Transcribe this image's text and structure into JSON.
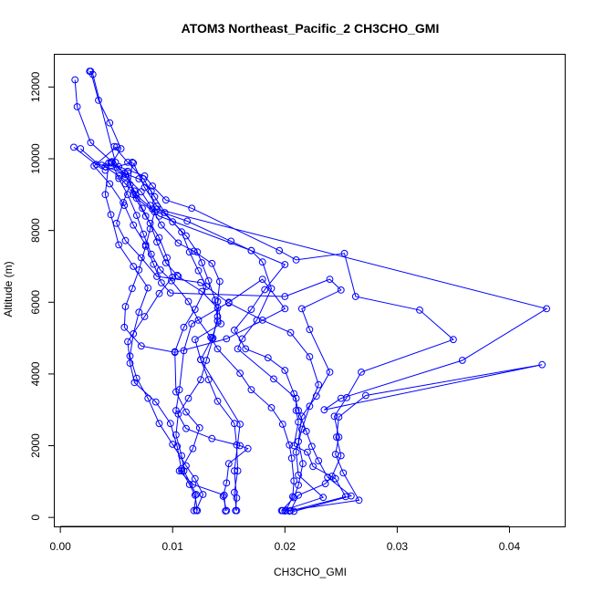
{
  "chart_data": {
    "type": "line",
    "title": "ATOM3 Northeast_Pacific_2 CH3CHO_GMI",
    "xlabel": "CH3CHO_GMI",
    "ylabel": "Altitude (m)",
    "xlim": [
      -0.0005,
      0.045
    ],
    "ylim": [
      -250,
      12900
    ],
    "xticks": [
      0.0,
      0.01,
      0.02,
      0.03,
      0.04
    ],
    "xtick_labels": [
      "0.00",
      "0.01",
      "0.02",
      "0.03",
      "0.04"
    ],
    "yticks": [
      0,
      2000,
      4000,
      6000,
      8000,
      10000,
      12000
    ],
    "ytick_labels": [
      "0",
      "2000",
      "4000",
      "6000",
      "8000",
      "10000",
      "12000"
    ],
    "grid": false,
    "color": "#0000ff",
    "marker": "open-circle",
    "series": [
      {
        "points": [
          [
            0.0027,
            12440
          ],
          [
            0.0034,
            11630
          ],
          [
            0.0044,
            11000
          ],
          [
            0.0054,
            10280
          ],
          [
            0.0046,
            9880
          ],
          [
            0.0052,
            9450
          ],
          [
            0.006,
            9000
          ],
          [
            0.0068,
            8420
          ],
          [
            0.0074,
            7900
          ],
          [
            0.0081,
            7340
          ],
          [
            0.0089,
            6900
          ],
          [
            0.0099,
            6600
          ],
          [
            0.0114,
            6020
          ],
          [
            0.0123,
            5500
          ],
          [
            0.0134,
            5020
          ],
          [
            0.014,
            4700
          ],
          [
            0.016,
            4020
          ],
          [
            0.017,
            3560
          ],
          [
            0.0188,
            3060
          ],
          [
            0.0198,
            2600
          ],
          [
            0.0204,
            2020
          ],
          [
            0.0206,
            1650
          ],
          [
            0.0208,
            1020
          ],
          [
            0.0207,
            580
          ],
          [
            0.0201,
            200
          ]
        ]
      },
      {
        "points": [
          [
            0.0013,
            12200
          ],
          [
            0.0015,
            11450
          ],
          [
            0.0027,
            10450
          ],
          [
            0.0046,
            9920
          ],
          [
            0.0058,
            9560
          ],
          [
            0.0067,
            9000
          ],
          [
            0.0082,
            8600
          ],
          [
            0.0113,
            8260
          ],
          [
            0.0152,
            7700
          ],
          [
            0.017,
            7440
          ],
          [
            0.02,
            7050
          ],
          [
            0.0182,
            6350
          ],
          [
            0.017,
            5800
          ],
          [
            0.0155,
            5220
          ],
          [
            0.0165,
            4700
          ],
          [
            0.0185,
            4450
          ],
          [
            0.02,
            4100
          ],
          [
            0.0208,
            3450
          ],
          [
            0.0212,
            2980
          ],
          [
            0.0219,
            2400
          ],
          [
            0.0224,
            1980
          ],
          [
            0.023,
            1580
          ],
          [
            0.0238,
            1120
          ],
          [
            0.0259,
            600
          ],
          [
            0.0208,
            170
          ]
        ]
      },
      {
        "points": [
          [
            0.0012,
            10320
          ],
          [
            0.0032,
            9840
          ],
          [
            0.0052,
            9780
          ],
          [
            0.0075,
            9520
          ],
          [
            0.0082,
            9240
          ],
          [
            0.0094,
            8850
          ],
          [
            0.0117,
            8620
          ],
          [
            0.0195,
            7440
          ],
          [
            0.021,
            7180
          ],
          [
            0.0253,
            7360
          ],
          [
            0.0263,
            6160
          ],
          [
            0.032,
            5780
          ],
          [
            0.035,
            4960
          ],
          [
            0.0268,
            4050
          ],
          [
            0.0255,
            3340
          ],
          [
            0.0244,
            2820
          ],
          [
            0.0248,
            2240
          ],
          [
            0.0245,
            1760
          ],
          [
            0.0252,
            1240
          ],
          [
            0.0266,
            480
          ],
          [
            0.02,
            180
          ]
        ]
      },
      {
        "points": [
          [
            0.0018,
            10280
          ],
          [
            0.004,
            9680
          ],
          [
            0.0064,
            9900
          ],
          [
            0.0062,
            9280
          ],
          [
            0.0056,
            8780
          ],
          [
            0.005,
            8200
          ],
          [
            0.0058,
            7720
          ],
          [
            0.0072,
            7240
          ],
          [
            0.0086,
            6720
          ],
          [
            0.0125,
            6550
          ],
          [
            0.015,
            5980
          ],
          [
            0.018,
            5500
          ],
          [
            0.0205,
            5150
          ],
          [
            0.0222,
            4480
          ],
          [
            0.023,
            3700
          ],
          [
            0.0222,
            3100
          ],
          [
            0.0215,
            2460
          ],
          [
            0.021,
            1820
          ],
          [
            0.0212,
            1180
          ],
          [
            0.0234,
            560
          ],
          [
            0.0198,
            190
          ]
        ]
      },
      {
        "points": [
          [
            0.005,
            10330
          ],
          [
            0.003,
            9800
          ],
          [
            0.0044,
            9300
          ],
          [
            0.0057,
            8700
          ],
          [
            0.0065,
            8150
          ],
          [
            0.0076,
            7600
          ],
          [
            0.0083,
            7060
          ],
          [
            0.009,
            6540
          ],
          [
            0.0098,
            6260
          ],
          [
            0.02,
            6160
          ],
          [
            0.024,
            6640
          ],
          [
            0.025,
            6340
          ],
          [
            0.0215,
            5820
          ],
          [
            0.0222,
            5240
          ],
          [
            0.024,
            4050
          ],
          [
            0.0228,
            3380
          ],
          [
            0.0215,
            2820
          ],
          [
            0.0212,
            2120
          ],
          [
            0.0216,
            1500
          ],
          [
            0.0212,
            900
          ],
          [
            0.0208,
            550
          ],
          [
            0.0197,
            190
          ]
        ]
      },
      {
        "points": [
          [
            0.0043,
            9880
          ],
          [
            0.004,
            9000
          ],
          [
            0.0045,
            8440
          ],
          [
            0.0052,
            7600
          ],
          [
            0.0065,
            7000
          ],
          [
            0.0078,
            6400
          ],
          [
            0.007,
            5720
          ],
          [
            0.0065,
            5120
          ],
          [
            0.0062,
            4500
          ],
          [
            0.0068,
            3880
          ],
          [
            0.0078,
            3320
          ],
          [
            0.0088,
            2620
          ],
          [
            0.01,
            2040
          ],
          [
            0.0112,
            1440
          ],
          [
            0.012,
            1080
          ],
          [
            0.0127,
            640
          ],
          [
            0.0121,
            200
          ]
        ]
      },
      {
        "points": [
          [
            0.006,
            9650
          ],
          [
            0.0065,
            9000
          ],
          [
            0.0076,
            8400
          ],
          [
            0.0088,
            7800
          ],
          [
            0.0095,
            7240
          ],
          [
            0.01,
            6700
          ],
          [
            0.0088,
            6240
          ],
          [
            0.0075,
            5600
          ],
          [
            0.006,
            4900
          ],
          [
            0.0062,
            4300
          ],
          [
            0.0066,
            3760
          ],
          [
            0.0085,
            3220
          ],
          [
            0.0098,
            2620
          ],
          [
            0.0104,
            1980
          ],
          [
            0.0108,
            1300
          ],
          [
            0.0115,
            920
          ],
          [
            0.012,
            620
          ],
          [
            0.0122,
            190
          ]
        ]
      },
      {
        "points": [
          [
            0.0026,
            12440
          ],
          [
            0.0029,
            12350
          ],
          [
            0.0049,
            9900
          ],
          [
            0.0058,
            9500
          ],
          [
            0.0072,
            9080
          ],
          [
            0.008,
            8700
          ],
          [
            0.009,
            8150
          ],
          [
            0.0105,
            7650
          ],
          [
            0.0119,
            7420
          ],
          [
            0.0135,
            7080
          ],
          [
            0.0142,
            6580
          ],
          [
            0.014,
            6020
          ],
          [
            0.0143,
            5400
          ],
          [
            0.012,
            4960
          ],
          [
            0.0125,
            4400
          ],
          [
            0.0132,
            3840
          ],
          [
            0.014,
            3240
          ],
          [
            0.0155,
            2620
          ],
          [
            0.0157,
            2020
          ],
          [
            0.0158,
            1300
          ],
          [
            0.0155,
            700
          ],
          [
            0.0157,
            190
          ]
        ]
      },
      {
        "points": [
          [
            0.0037,
            9820
          ],
          [
            0.007,
            9440
          ],
          [
            0.0081,
            9100
          ],
          [
            0.0084,
            8520
          ],
          [
            0.008,
            8050
          ],
          [
            0.0076,
            7560
          ],
          [
            0.007,
            6900
          ],
          [
            0.0064,
            6380
          ],
          [
            0.0058,
            5880
          ],
          [
            0.0057,
            5300
          ],
          [
            0.0072,
            4780
          ],
          [
            0.0102,
            4600
          ],
          [
            0.0148,
            4980
          ],
          [
            0.02,
            5820
          ],
          [
            0.018,
            6640
          ],
          [
            0.015,
            6000
          ],
          [
            0.0117,
            5400
          ],
          [
            0.011,
            4650
          ],
          [
            0.0106,
            3560
          ],
          [
            0.0103,
            2980
          ],
          [
            0.0112,
            2480
          ],
          [
            0.0135,
            2200
          ],
          [
            0.016,
            2000
          ],
          [
            0.0167,
            1920
          ],
          [
            0.015,
            1500
          ],
          [
            0.0148,
            960
          ],
          [
            0.0145,
            590
          ],
          [
            0.0148,
            190
          ]
        ]
      },
      {
        "points": [
          [
            0.0045,
            9900
          ],
          [
            0.0057,
            9600
          ],
          [
            0.0066,
            9100
          ],
          [
            0.0073,
            8620
          ],
          [
            0.008,
            8200
          ],
          [
            0.0086,
            7680
          ],
          [
            0.0094,
            7100
          ],
          [
            0.0104,
            6750
          ],
          [
            0.0105,
            6720
          ],
          [
            0.0126,
            6300
          ],
          [
            0.014,
            5840
          ],
          [
            0.014,
            5600
          ],
          [
            0.0136,
            5000
          ],
          [
            0.013,
            4380
          ],
          [
            0.0125,
            3840
          ],
          [
            0.0114,
            3320
          ],
          [
            0.0105,
            2880
          ],
          [
            0.0103,
            2300
          ],
          [
            0.0108,
            1720
          ],
          [
            0.011,
            1300
          ],
          [
            0.0121,
            640
          ],
          [
            0.0119,
            190
          ]
        ]
      },
      {
        "points": [
          [
            0.0065,
            9880
          ],
          [
            0.0075,
            9200
          ],
          [
            0.0086,
            8680
          ],
          [
            0.01,
            8240
          ],
          [
            0.0112,
            7850
          ],
          [
            0.0122,
            7400
          ],
          [
            0.0126,
            7100
          ],
          [
            0.0132,
            6600
          ],
          [
            0.0138,
            6060
          ],
          [
            0.014,
            5480
          ],
          [
            0.0135,
            4990
          ],
          [
            0.0125,
            4400
          ],
          [
            0.016,
            2600
          ],
          [
            0.0155,
            1300
          ],
          [
            0.0157,
            540
          ],
          [
            0.0156,
            190
          ]
        ]
      },
      {
        "points": [
          [
            0.0086,
            8600
          ],
          [
            0.0433,
            5820
          ],
          [
            0.0358,
            4380
          ],
          [
            0.025,
            3320
          ],
          [
            0.0235,
            3000
          ],
          [
            0.0429,
            4260
          ],
          [
            0.0272,
            3400
          ],
          [
            0.0248,
            2800
          ],
          [
            0.0246,
            2240
          ],
          [
            0.025,
            1720
          ],
          [
            0.0242,
            1150
          ],
          [
            0.0236,
            940
          ],
          [
            0.0212,
            620
          ],
          [
            0.0205,
            190
          ]
        ]
      },
      {
        "points": [
          [
            0.004,
            9780
          ],
          [
            0.0052,
            9520
          ],
          [
            0.0058,
            9300
          ],
          [
            0.0068,
            8900
          ],
          [
            0.0088,
            8400
          ],
          [
            0.017,
            7440
          ],
          [
            0.018,
            7120
          ],
          [
            0.0188,
            6380
          ],
          [
            0.0175,
            5500
          ],
          [
            0.0162,
            4980
          ],
          [
            0.0158,
            4700
          ],
          [
            0.019,
            3860
          ],
          [
            0.021,
            3320
          ],
          [
            0.021,
            2980
          ],
          [
            0.0212,
            2660
          ],
          [
            0.0208,
            2000
          ],
          [
            0.022,
            1820
          ],
          [
            0.0225,
            1420
          ],
          [
            0.0245,
            1080
          ],
          [
            0.0254,
            580
          ],
          [
            0.0204,
            175
          ]
        ]
      },
      {
        "points": [
          [
            0.0048,
            10340
          ],
          [
            0.006,
            9900
          ],
          [
            0.0074,
            9440
          ],
          [
            0.0084,
            8940
          ],
          [
            0.0093,
            8500
          ],
          [
            0.0108,
            7960
          ],
          [
            0.0115,
            7400
          ],
          [
            0.0123,
            6880
          ],
          [
            0.013,
            6440
          ],
          [
            0.012,
            5800
          ],
          [
            0.011,
            5300
          ],
          [
            0.0102,
            4620
          ],
          [
            0.0103,
            3500
          ],
          [
            0.0112,
            2940
          ],
          [
            0.0124,
            2500
          ],
          [
            0.0118,
            1920
          ],
          [
            0.0108,
            1360
          ],
          [
            0.0106,
            1300
          ],
          [
            0.0118,
            920
          ],
          [
            0.0146,
            620
          ],
          [
            0.0147,
            180
          ]
        ]
      }
    ]
  }
}
